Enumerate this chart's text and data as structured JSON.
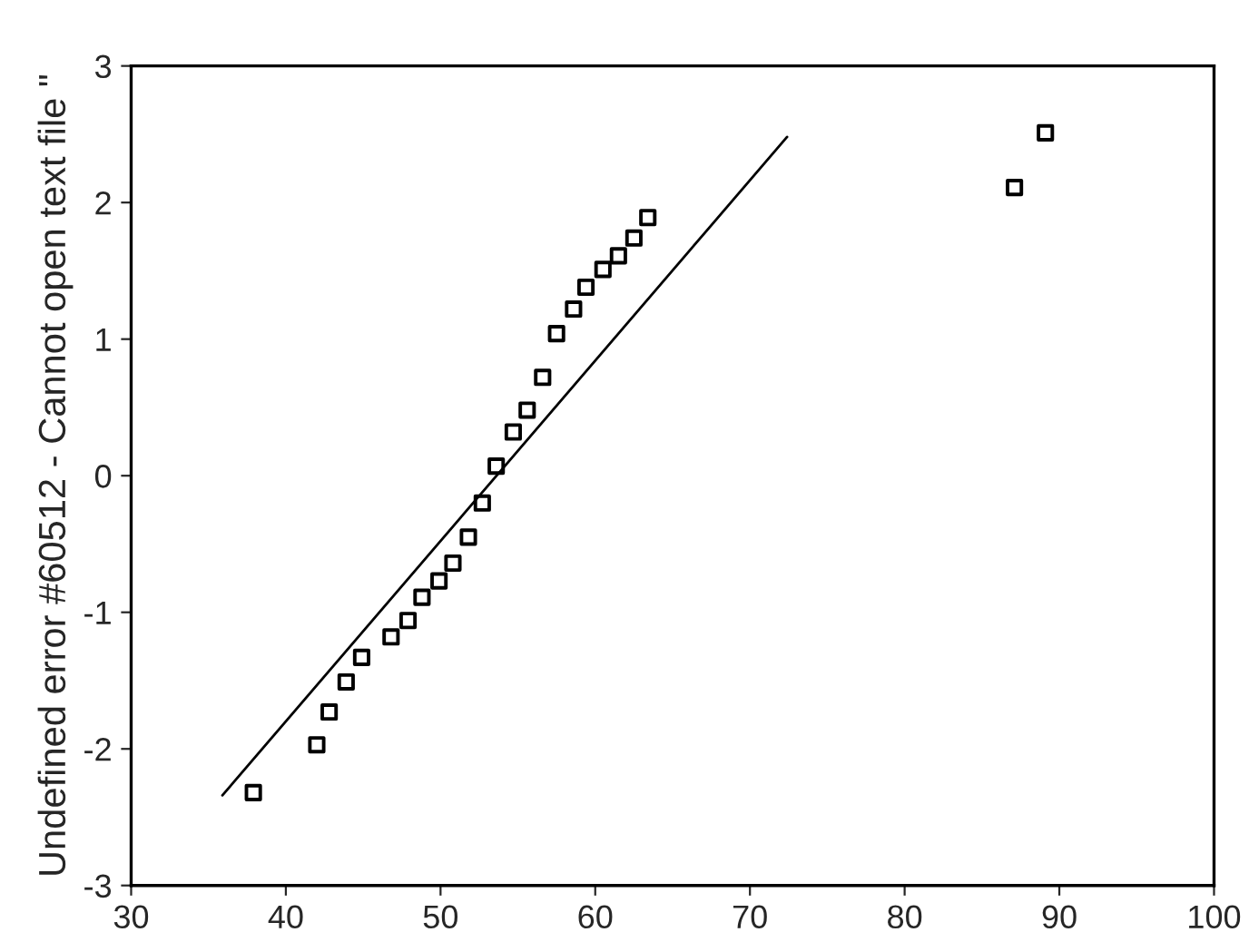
{
  "chart_data": {
    "type": "scatter",
    "ylabel": "Undefined error #60512 - Cannot open text file \"",
    "grid": false,
    "xlim": [
      30,
      100
    ],
    "xticks": [
      30,
      40,
      50,
      60,
      70,
      80,
      90,
      100
    ],
    "ylim": [
      -3,
      3
    ],
    "yticks": [
      -3,
      -2,
      -1,
      0,
      1,
      2,
      3
    ],
    "series": [
      {
        "marker": "square",
        "color": "#000000",
        "x": [
          37.9,
          42.0,
          42.8,
          43.9,
          44.9,
          46.8,
          47.9,
          48.8,
          49.9,
          50.8,
          51.8,
          52.7,
          53.6,
          54.7,
          55.6,
          56.6,
          57.5,
          58.6,
          59.4,
          60.5,
          61.5,
          62.5,
          63.4,
          87.1,
          89.1
        ],
        "values": [
          -2.32,
          -1.97,
          -1.73,
          -1.51,
          -1.33,
          -1.18,
          -1.06,
          -0.89,
          -0.77,
          -0.64,
          -0.45,
          -0.2,
          0.07,
          0.32,
          0.48,
          0.72,
          1.04,
          1.22,
          1.38,
          1.51,
          1.61,
          1.74,
          1.89,
          2.11,
          2.51
        ]
      },
      {
        "type": "line",
        "color": "#000000",
        "x": [
          35.9,
          72.4
        ],
        "values": [
          -2.34,
          2.48
        ]
      }
    ]
  }
}
